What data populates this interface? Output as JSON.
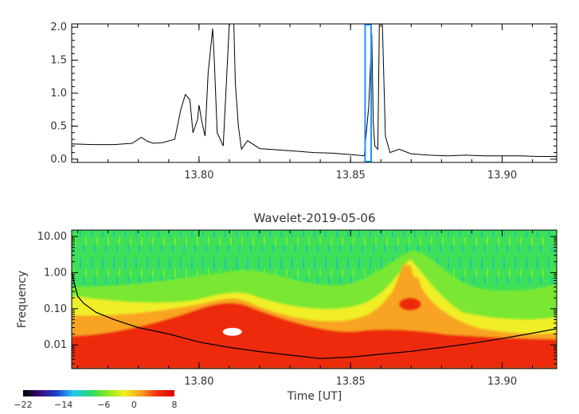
{
  "chart_data": [
    {
      "type": "line",
      "title": "",
      "xlabel": "",
      "ylabel": "",
      "xlim": [
        13.758,
        13.918
      ],
      "ylim": [
        -0.05,
        2.05
      ],
      "xticks": [
        13.8,
        13.85,
        13.9
      ],
      "xtick_labels": [
        "13.80",
        "13.85",
        "13.90"
      ],
      "yticks": [
        0.0,
        0.5,
        1.0,
        1.5,
        2.0
      ],
      "ytick_labels": [
        "0.0",
        "0.5",
        "1.0",
        "1.5",
        "2.0"
      ],
      "series": [
        {
          "x": [
            13.758,
            13.765,
            13.772,
            13.778,
            13.781,
            13.783,
            13.785,
            13.788,
            13.792,
            13.794,
            13.7955,
            13.797,
            13.798,
            13.7995,
            13.8,
            13.801,
            13.802,
            13.803,
            13.8045,
            13.805,
            13.806,
            13.808,
            13.81,
            13.8115,
            13.812,
            13.813,
            13.814,
            13.816,
            13.82,
            13.826,
            13.832,
            13.838,
            13.844,
            13.85,
            13.8545,
            13.856,
            13.857,
            13.8575,
            13.858,
            13.859,
            13.8595,
            13.8605,
            13.8615,
            13.863,
            13.866,
            13.87,
            13.876,
            13.882,
            13.888,
            13.894,
            13.9,
            13.906,
            13.912,
            13.918
          ],
          "values": [
            0.23,
            0.22,
            0.22,
            0.24,
            0.33,
            0.27,
            0.24,
            0.25,
            0.3,
            0.75,
            0.98,
            0.9,
            0.4,
            0.6,
            0.82,
            0.55,
            0.35,
            1.3,
            1.98,
            1.55,
            0.4,
            0.2,
            2.05,
            2.05,
            1.15,
            0.5,
            0.15,
            0.28,
            0.16,
            0.14,
            0.12,
            0.1,
            0.09,
            0.07,
            0.05,
            0.8,
            1.9,
            0.55,
            0.2,
            0.15,
            2.05,
            2.05,
            0.35,
            0.1,
            0.15,
            0.08,
            0.06,
            0.05,
            0.06,
            0.05,
            0.05,
            0.05,
            0.04,
            0.04
          ],
          "color": "#000000"
        }
      ],
      "annotations": [
        {
          "type": "rectangle",
          "x_range": [
            13.8548,
            13.8568
          ],
          "y_range": [
            -0.05,
            2.05
          ],
          "color": "#1e90ff"
        }
      ]
    },
    {
      "type": "heatmap",
      "title": "Wavelet-2019-05-06",
      "xlabel": "Time [UT]",
      "ylabel": "Frequency",
      "xlim": [
        13.758,
        13.918
      ],
      "ylim": [
        0.0022,
        15
      ],
      "yscale": "log",
      "xticks": [
        13.8,
        13.85,
        13.9
      ],
      "xtick_labels": [
        "13.80",
        "13.85",
        "13.90"
      ],
      "yticks": [
        0.01,
        0.1,
        1.0,
        10.0
      ],
      "ytick_labels": [
        "0.01",
        "0.10",
        "1.00",
        "10.00"
      ],
      "colorbar": {
        "range": [
          -22,
          8
        ],
        "ticks": [
          -22,
          -14,
          -6,
          0,
          8
        ],
        "tick_labels": [
          "−22",
          "−14",
          "−6",
          "0",
          "8"
        ],
        "colors": [
          "#000000",
          "#3a0a7a",
          "#1a40d0",
          "#22c8f0",
          "#28d870",
          "#88e820",
          "#f0f020",
          "#f8a020",
          "#f03010",
          "#e00000"
        ]
      },
      "power_regions": [
        {
          "level": "background",
          "color": "#3ee05a"
        },
        {
          "level": "mid",
          "color": "#7ae830"
        },
        {
          "level": "yellow",
          "color": "#f0ee28"
        },
        {
          "level": "orange",
          "color": "#f8a424"
        },
        {
          "level": "red",
          "color": "#ee2a0a"
        }
      ],
      "peak_marker": {
        "x": 13.811,
        "y": 0.023,
        "color": "#ffffff"
      },
      "cone_of_influence": {
        "x": [
          13.758,
          13.76,
          13.762,
          13.766,
          13.772,
          13.78,
          13.79,
          13.8,
          13.81,
          13.82,
          13.83,
          13.84,
          13.85,
          13.86,
          13.87,
          13.88,
          13.89,
          13.9,
          13.91,
          13.918
        ],
        "y": [
          1.0,
          0.22,
          0.14,
          0.08,
          0.05,
          0.03,
          0.02,
          0.012,
          0.0085,
          0.0065,
          0.0052,
          0.0042,
          0.0046,
          0.0055,
          0.0066,
          0.0085,
          0.011,
          0.015,
          0.021,
          0.028
        ],
        "color": "#000000"
      }
    }
  ]
}
